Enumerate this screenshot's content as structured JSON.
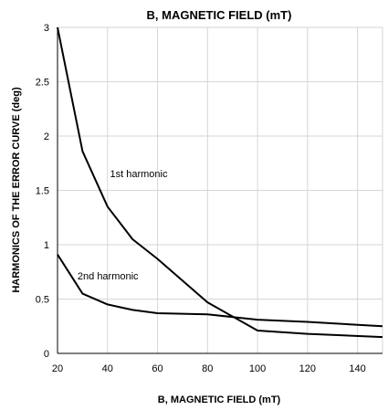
{
  "chart_data": {
    "type": "line",
    "title": "B, MAGNETIC FIELD (mT)",
    "xlabel": "B, MAGNETIC FIELD (mT)",
    "ylabel": "HARMONICS OF THE ERROR CURVE (deg)",
    "xlim": [
      20,
      150
    ],
    "ylim": [
      0,
      3
    ],
    "xticks": [
      20,
      40,
      60,
      80,
      100,
      120,
      140
    ],
    "xtick_labels": [
      "20",
      "40",
      "60",
      "80",
      "100",
      "120",
      "140"
    ],
    "yticks": [
      0,
      0.5,
      1,
      1.5,
      2,
      2.5,
      3
    ],
    "ytick_labels": [
      "0",
      "0.5",
      "1",
      "1.5",
      "2",
      "2.5",
      "3"
    ],
    "grid": true,
    "series": [
      {
        "name": "1st harmonic",
        "x": [
          20,
          30,
          40,
          50,
          60,
          80,
          100,
          120,
          150
        ],
        "y": [
          3.0,
          1.86,
          1.35,
          1.05,
          0.87,
          0.47,
          0.21,
          0.18,
          0.15
        ]
      },
      {
        "name": "2nd harmonic",
        "x": [
          20,
          30,
          40,
          50,
          60,
          80,
          100,
          120,
          150
        ],
        "y": [
          0.91,
          0.55,
          0.45,
          0.4,
          0.37,
          0.36,
          0.31,
          0.29,
          0.25
        ]
      }
    ],
    "annotations": [
      {
        "text": "1st harmonic",
        "x": 41,
        "y": 1.62
      },
      {
        "text": "2nd harmonic",
        "x": 28,
        "y": 0.68
      }
    ]
  }
}
